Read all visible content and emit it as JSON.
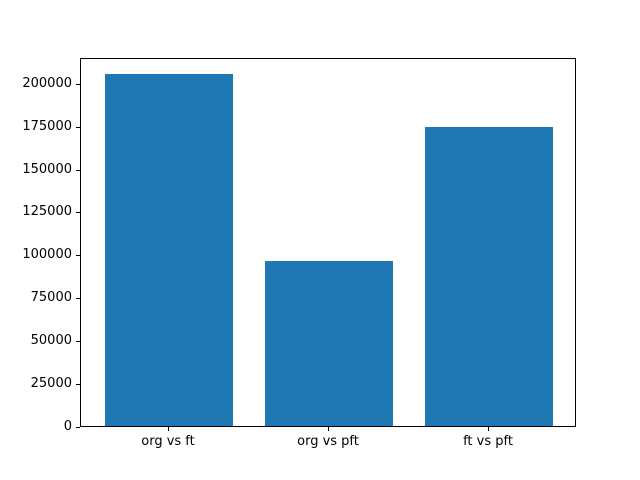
{
  "chart_data": {
    "type": "bar",
    "title": "",
    "xlabel": "",
    "ylabel": "",
    "categories": [
      "org vs ft",
      "org vs pft",
      "ft vs pft"
    ],
    "values": [
      205000,
      96000,
      174000
    ],
    "yticks": [
      0,
      25000,
      50000,
      75000,
      100000,
      125000,
      150000,
      175000,
      200000
    ],
    "ylim": [
      0,
      215000
    ],
    "bar_color": "#1f77b4",
    "axis_color": "#000000",
    "background_color": "#ffffff",
    "grid": false,
    "legend": null
  }
}
